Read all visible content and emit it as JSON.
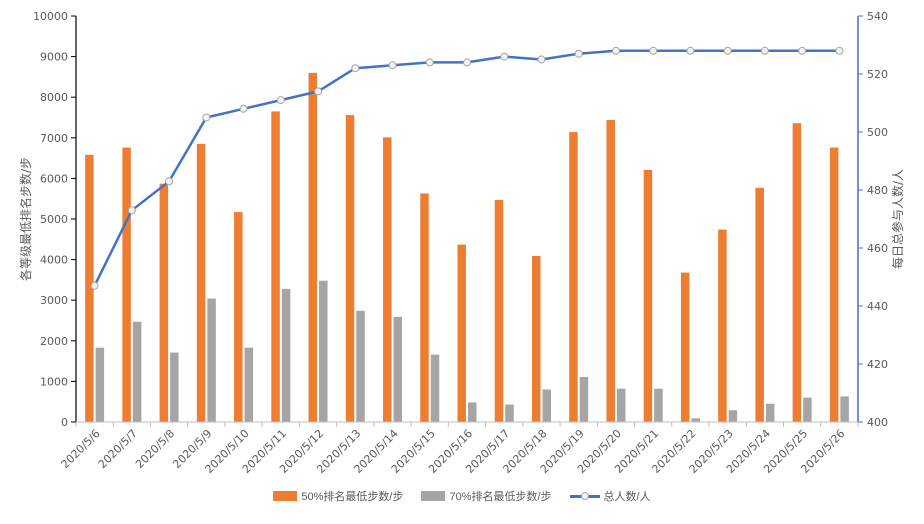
{
  "chart_data": {
    "type": "bar",
    "categories": [
      "2020/5/6",
      "2020/5/7",
      "2020/5/8",
      "2020/5/9",
      "2020/5/10",
      "2020/5/11",
      "2020/5/12",
      "2020/5/13",
      "2020/5/14",
      "2020/5/15",
      "2020/5/16",
      "2020/5/17",
      "2020/5/18",
      "2020/5/19",
      "2020/5/20",
      "2020/5/21",
      "2020/5/22",
      "2020/5/23",
      "2020/5/24",
      "2020/5/25",
      "2020/5/26"
    ],
    "series": [
      {
        "name": "50%排名最低步数/步",
        "type": "bar",
        "axis": "left",
        "color": "#ED7D31",
        "values": [
          6580,
          6760,
          5870,
          6850,
          5170,
          7650,
          8600,
          7560,
          7010,
          5630,
          4370,
          5470,
          4090,
          7140,
          7440,
          6210,
          3680,
          4740,
          5770,
          7360,
          6760
        ]
      },
      {
        "name": "70%排名最低步数/步",
        "type": "bar",
        "axis": "left",
        "color": "#A5A5A5",
        "values": [
          1830,
          2470,
          1710,
          3040,
          1830,
          3280,
          3480,
          2740,
          2590,
          1660,
          480,
          430,
          800,
          1110,
          820,
          820,
          90,
          290,
          450,
          600,
          630
        ]
      },
      {
        "name": "总人数/人",
        "type": "line",
        "axis": "right",
        "color": "#4472C4",
        "values": [
          447,
          473,
          483,
          505,
          508,
          511,
          514,
          522,
          523,
          524,
          524,
          526,
          525,
          527,
          528,
          528,
          528,
          528,
          528,
          528,
          528
        ]
      }
    ],
    "ylabel": "各等级最低排名步数/步",
    "y2label": "每日总参与人数/人",
    "ylim": [
      0,
      10000
    ],
    "y2lim": [
      400,
      540
    ],
    "yticks": [
      0,
      1000,
      2000,
      3000,
      4000,
      5000,
      6000,
      7000,
      8000,
      9000,
      10000
    ],
    "y2ticks": [
      400,
      420,
      440,
      460,
      480,
      500,
      520,
      540
    ],
    "grid": false,
    "legend": "bottom"
  }
}
